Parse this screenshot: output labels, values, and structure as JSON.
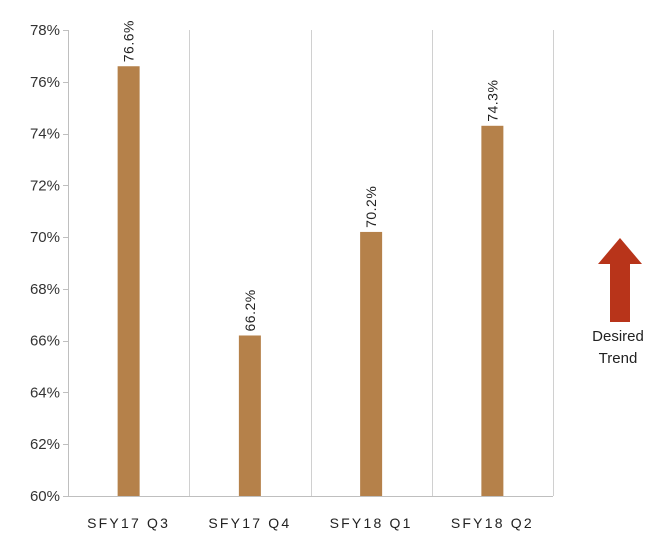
{
  "chart_data": {
    "type": "bar",
    "categories": [
      "SFY17 Q3",
      "SFY17 Q4",
      "SFY18 Q1",
      "SFY18 Q2"
    ],
    "values": [
      76.6,
      66.2,
      70.2,
      74.3
    ],
    "data_labels": [
      "76.6%",
      "66.2%",
      "70.2%",
      "74.3%"
    ],
    "ylim": [
      60,
      78
    ],
    "yticks": [
      60,
      62,
      64,
      66,
      68,
      70,
      72,
      74,
      76,
      78
    ],
    "ytick_labels": [
      "60%",
      "62%",
      "64%",
      "66%",
      "68%",
      "70%",
      "72%",
      "74%",
      "76%",
      "78%"
    ],
    "title": "",
    "xlabel": "",
    "ylabel": "",
    "bar_color": "#b5814a",
    "vertical_grid": true,
    "horizontal_grid": false,
    "legend": "none"
  },
  "annotation": {
    "line1": "Desired",
    "line2": "Trend",
    "arrow_color": "#b8341a",
    "arrow_icon": "up-arrow-icon"
  }
}
